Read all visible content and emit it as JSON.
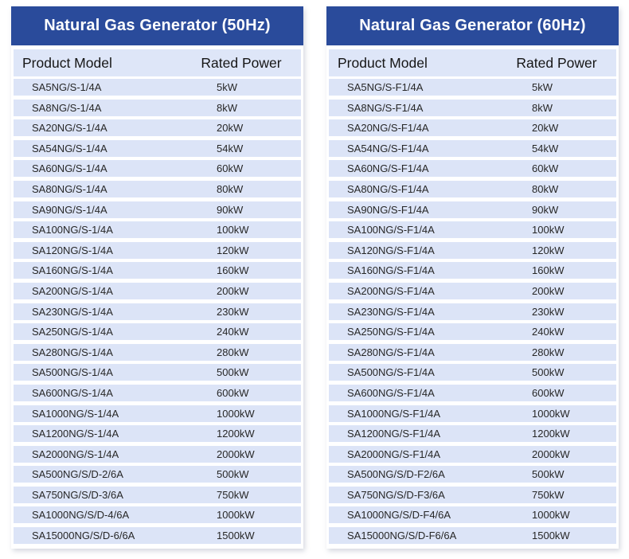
{
  "colors": {
    "title_bg": "#2a4b9b",
    "title_text": "#ffffff",
    "header_row_bg": "#dee6f8",
    "row_bg": "#dce4f7",
    "page_bg": "#ffffff"
  },
  "chart_data": [
    {
      "type": "table",
      "title": "Natural Gas Generator (50Hz)",
      "columns": [
        "Product Model",
        "Rated Power"
      ],
      "rows": [
        [
          "SA5NG/S-1/4A",
          "5kW"
        ],
        [
          "SA8NG/S-1/4A",
          "8kW"
        ],
        [
          "SA20NG/S-1/4A",
          "20kW"
        ],
        [
          "SA54NG/S-1/4A",
          "54kW"
        ],
        [
          "SA60NG/S-1/4A",
          "60kW"
        ],
        [
          "SA80NG/S-1/4A",
          "80kW"
        ],
        [
          "SA90NG/S-1/4A",
          "90kW"
        ],
        [
          "SA100NG/S-1/4A",
          "100kW"
        ],
        [
          "SA120NG/S-1/4A",
          "120kW"
        ],
        [
          "SA160NG/S-1/4A",
          "160kW"
        ],
        [
          "SA200NG/S-1/4A",
          "200kW"
        ],
        [
          "SA230NG/S-1/4A",
          "230kW"
        ],
        [
          "SA250NG/S-1/4A",
          "240kW"
        ],
        [
          "SA280NG/S-1/4A",
          "280kW"
        ],
        [
          "SA500NG/S-1/4A",
          "500kW"
        ],
        [
          "SA600NG/S-1/4A",
          "600kW"
        ],
        [
          "SA1000NG/S-1/4A",
          "1000kW"
        ],
        [
          "SA1200NG/S-1/4A",
          "1200kW"
        ],
        [
          "SA2000NG/S-1/4A",
          "2000kW"
        ],
        [
          "SA500NG/S/D-2/6A",
          "500kW"
        ],
        [
          "SA750NG/S/D-3/6A",
          "750kW"
        ],
        [
          "SA1000NG/S/D-4/6A",
          "1000kW"
        ],
        [
          "SA15000NG/S/D-6/6A",
          "1500kW"
        ]
      ]
    },
    {
      "type": "table",
      "title": "Natural Gas Generator (60Hz)",
      "columns": [
        "Product Model",
        "Rated Power"
      ],
      "rows": [
        [
          "SA5NG/S-F1/4A",
          "5kW"
        ],
        [
          "SA8NG/S-F1/4A",
          "8kW"
        ],
        [
          "SA20NG/S-F1/4A",
          "20kW"
        ],
        [
          "SA54NG/S-F1/4A",
          "54kW"
        ],
        [
          "SA60NG/S-F1/4A",
          "60kW"
        ],
        [
          "SA80NG/S-F1/4A",
          "80kW"
        ],
        [
          "SA90NG/S-F1/4A",
          "90kW"
        ],
        [
          "SA100NG/S-F1/4A",
          "100kW"
        ],
        [
          "SA120NG/S-F1/4A",
          "120kW"
        ],
        [
          "SA160NG/S-F1/4A",
          "160kW"
        ],
        [
          "SA200NG/S-F1/4A",
          "200kW"
        ],
        [
          "SA230NG/S-F1/4A",
          "230kW"
        ],
        [
          "SA250NG/S-F1/4A",
          "240kW"
        ],
        [
          "SA280NG/S-F1/4A",
          "280kW"
        ],
        [
          "SA500NG/S-F1/4A",
          "500kW"
        ],
        [
          "SA600NG/S-F1/4A",
          "600kW"
        ],
        [
          "SA1000NG/S-F1/4A",
          "1000kW"
        ],
        [
          "SA1200NG/S-F1/4A",
          "1200kW"
        ],
        [
          "SA2000NG/S-F1/4A",
          "2000kW"
        ],
        [
          "SA500NG/S/D-F2/6A",
          "500kW"
        ],
        [
          "SA750NG/S/D-F3/6A",
          "750kW"
        ],
        [
          "SA1000NG/S/D-F4/6A",
          "1000kW"
        ],
        [
          "SA15000NG/S/D-F6/6A",
          "1500kW"
        ]
      ]
    }
  ]
}
